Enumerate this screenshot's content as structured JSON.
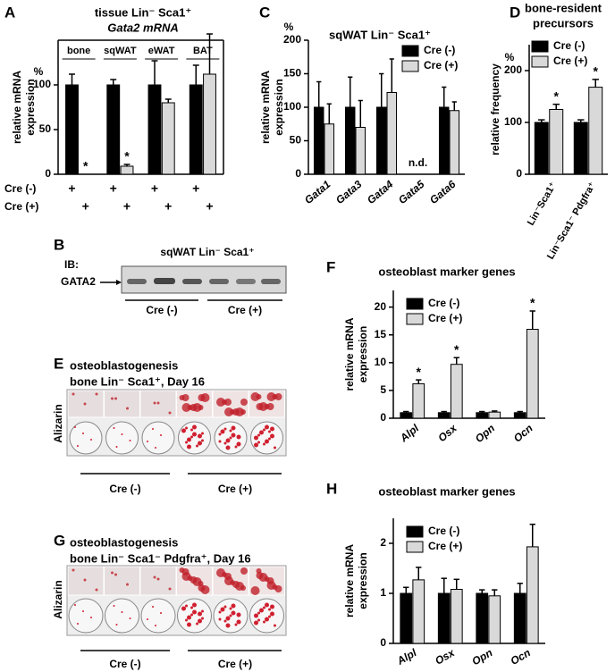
{
  "chart_data": [
    {
      "type": "bar",
      "panel": "A",
      "title": [
        "tissue Lin⁻ Sca1⁺",
        "Gata2 mRNA"
      ],
      "ylabel": [
        "relative mRNA",
        "expression"
      ],
      "unit": "%",
      "categories": [
        "bone",
        "sqWAT",
        "eWAT",
        "BAT"
      ],
      "ylim": [
        0,
        150
      ],
      "yticks": [
        0,
        50,
        100
      ],
      "series": [
        {
          "name": "Cre (-)",
          "color": "#000000",
          "values": [
            100,
            100,
            100,
            100
          ],
          "errors": [
            12,
            6,
            27,
            22
          ],
          "significance": [
            null,
            null,
            null,
            null
          ],
          "marks": [
            "+",
            "+",
            "+",
            "+"
          ]
        },
        {
          "name": "Cre (+)",
          "color": "#d9d9d9",
          "values": [
            0,
            9,
            80,
            112
          ],
          "errors": [
            0,
            2,
            4,
            45
          ],
          "significance": [
            "*",
            "*",
            null,
            null
          ],
          "marks": [
            "+",
            "+",
            "+",
            "+"
          ]
        }
      ]
    },
    {
      "type": "bar",
      "panel": "C",
      "title": [
        "sqWAT Lin⁻ Sca1⁺"
      ],
      "ylabel": [
        "relative mRNA",
        "expression"
      ],
      "unit": "%",
      "categories": [
        "Gata1",
        "Gata3",
        "Gata4",
        "Gata5",
        "Gata6"
      ],
      "category_notes": [
        null,
        null,
        null,
        "n.d.",
        null
      ],
      "ylim": [
        0,
        200
      ],
      "yticks": [
        0,
        50,
        100,
        150,
        200
      ],
      "series": [
        {
          "name": "Cre (-)",
          "color": "#000000",
          "values": [
            100,
            100,
            100,
            null,
            100
          ],
          "errors": [
            38,
            45,
            50,
            null,
            30
          ]
        },
        {
          "name": "Cre (+)",
          "color": "#d9d9d9",
          "values": [
            75,
            70,
            122,
            null,
            95
          ],
          "errors": [
            30,
            40,
            50,
            null,
            13
          ]
        }
      ]
    },
    {
      "type": "bar",
      "panel": "D",
      "title": [
        "bone-resident",
        "precursors"
      ],
      "ylabel": [
        "relative frequency"
      ],
      "unit": "%",
      "categories": [
        "Lin⁻Sca1⁺",
        "Lin⁻Sca1⁻ Pdgfra⁺"
      ],
      "ylim": [
        0,
        250
      ],
      "yticks": [
        0,
        100,
        200
      ],
      "series": [
        {
          "name": "Cre (-)",
          "color": "#000000",
          "values": [
            100,
            100
          ],
          "errors": [
            5,
            5
          ],
          "significance": [
            null,
            null
          ]
        },
        {
          "name": "Cre (+)",
          "color": "#d9d9d9",
          "values": [
            125,
            168
          ],
          "errors": [
            10,
            15
          ],
          "significance": [
            "*",
            "*"
          ]
        }
      ]
    },
    {
      "type": "bar",
      "panel": "F",
      "title": [
        "osteoblast marker genes"
      ],
      "ylabel": [
        "relative mRNA",
        "expression"
      ],
      "categories": [
        "Alpl",
        "Osx",
        "Opn",
        "Ocn"
      ],
      "ylim": [
        0,
        23
      ],
      "yticks": [
        0,
        5,
        10,
        15,
        20
      ],
      "series": [
        {
          "name": "Cre (-)",
          "color": "#000000",
          "values": [
            1,
            1,
            1,
            1
          ],
          "errors": [
            0.2,
            0.2,
            0.2,
            0.2
          ],
          "significance": [
            null,
            null,
            null,
            null
          ]
        },
        {
          "name": "Cre (+)",
          "color": "#d9d9d9",
          "values": [
            6.2,
            9.7,
            1.1,
            16
          ],
          "errors": [
            0.7,
            1.2,
            0.2,
            3.3
          ],
          "significance": [
            "*",
            "*",
            null,
            "*"
          ]
        }
      ]
    },
    {
      "type": "bar",
      "panel": "H",
      "title": [
        "osteoblast marker genes"
      ],
      "ylabel": [
        "relative mRNA",
        "expression"
      ],
      "categories": [
        "Alpl",
        "Osx",
        "Opn",
        "Ocn"
      ],
      "ylim": [
        0,
        2.5
      ],
      "yticks": [
        0,
        1,
        2
      ],
      "series": [
        {
          "name": "Cre (-)",
          "color": "#000000",
          "values": [
            1,
            1,
            1,
            1
          ],
          "errors": [
            0.12,
            0.3,
            0.07,
            0.2
          ]
        },
        {
          "name": "Cre (+)",
          "color": "#d9d9d9",
          "values": [
            1.27,
            1.08,
            0.95,
            1.93
          ],
          "errors": [
            0.25,
            0.2,
            0.12,
            0.45
          ]
        }
      ]
    }
  ],
  "blot": {
    "panel": "B",
    "title": "sqWAT Lin⁻ Sca1⁺",
    "method": "IB:",
    "protein": "GATA2",
    "groups": [
      "Cre (-)",
      "Cre (+)"
    ]
  },
  "stain_e": {
    "panel": "E",
    "title": [
      "osteoblastogenesis",
      "bone Lin⁻ Sca1⁺, Day 16"
    ],
    "stain": "Alizarin",
    "groups": [
      "Cre (-)",
      "Cre (+)"
    ]
  },
  "stain_g": {
    "panel": "G",
    "title": [
      "osteoblastogenesis",
      "bone Lin⁻ Sca1⁻ Pdgfra⁺, Day 16"
    ],
    "stain": "Alizarin",
    "groups": [
      "Cre (-)",
      "Cre (+)"
    ]
  }
}
